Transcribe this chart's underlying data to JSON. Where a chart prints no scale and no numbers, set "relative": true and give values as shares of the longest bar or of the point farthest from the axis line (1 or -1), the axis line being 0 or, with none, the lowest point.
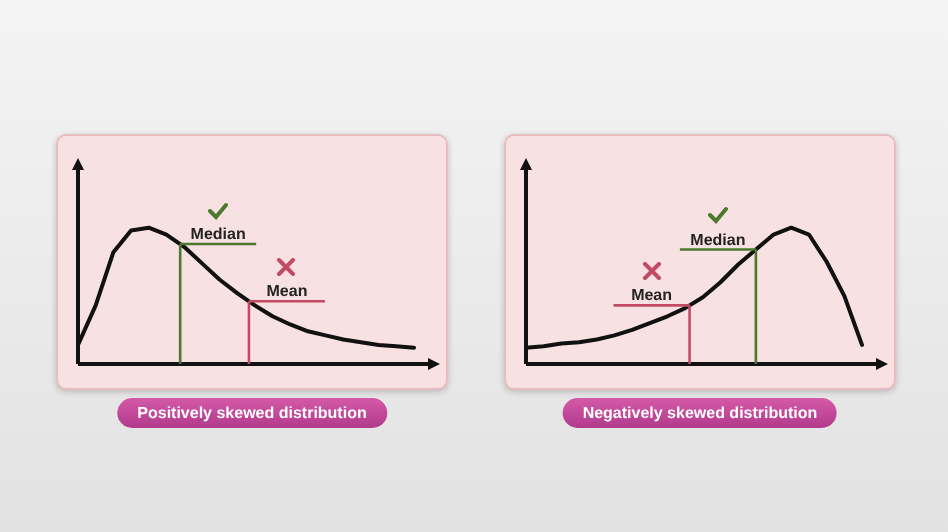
{
  "chart_data": [
    {
      "type": "line",
      "title": "Positively skewed distribution",
      "relative": true,
      "tick_labels": false,
      "marker": "none",
      "line_style": "solid",
      "categories": [
        null,
        null,
        null,
        null,
        null,
        null,
        null,
        null,
        null,
        null,
        null,
        null,
        null,
        null,
        null,
        null,
        null,
        null,
        null,
        null
      ],
      "series": [
        {
          "color": "#111111",
          "values": [
            0.14,
            0.43,
            0.82,
            0.98,
            1,
            0.95,
            0.86,
            0.74,
            0.62,
            0.52,
            0.43,
            0.35,
            0.29,
            0.24,
            0.21,
            0.18,
            0.16,
            0.14,
            0.13,
            0.12
          ]
        }
      ],
      "ref_lines": [
        {
          "axis": "y",
          "value": 0.88,
          "label": "Median",
          "color": "#4b7a2c"
        },
        {
          "axis": "y",
          "value": 0.46,
          "label": "Mean",
          "color": "#c24a63"
        }
      ]
    },
    {
      "type": "line",
      "title": "Negatively skewed distribution",
      "relative": true,
      "tick_labels": false,
      "marker": "none",
      "line_style": "solid",
      "categories": [
        null,
        null,
        null,
        null,
        null,
        null,
        null,
        null,
        null,
        null,
        null,
        null,
        null,
        null,
        null,
        null,
        null,
        null,
        null,
        null
      ],
      "series": [
        {
          "color": "#111111",
          "values": [
            0.12,
            0.13,
            0.15,
            0.16,
            0.18,
            0.21,
            0.25,
            0.3,
            0.35,
            0.41,
            0.49,
            0.6,
            0.73,
            0.84,
            0.95,
            1,
            0.95,
            0.75,
            0.5,
            0.14
          ]
        }
      ],
      "ref_lines": [
        {
          "axis": "y",
          "value": 0.84,
          "label": "Median",
          "color": "#4b7a2c"
        },
        {
          "axis": "y",
          "value": 0.43,
          "label": "Mean",
          "color": "#c24a63"
        }
      ]
    }
  ]
}
